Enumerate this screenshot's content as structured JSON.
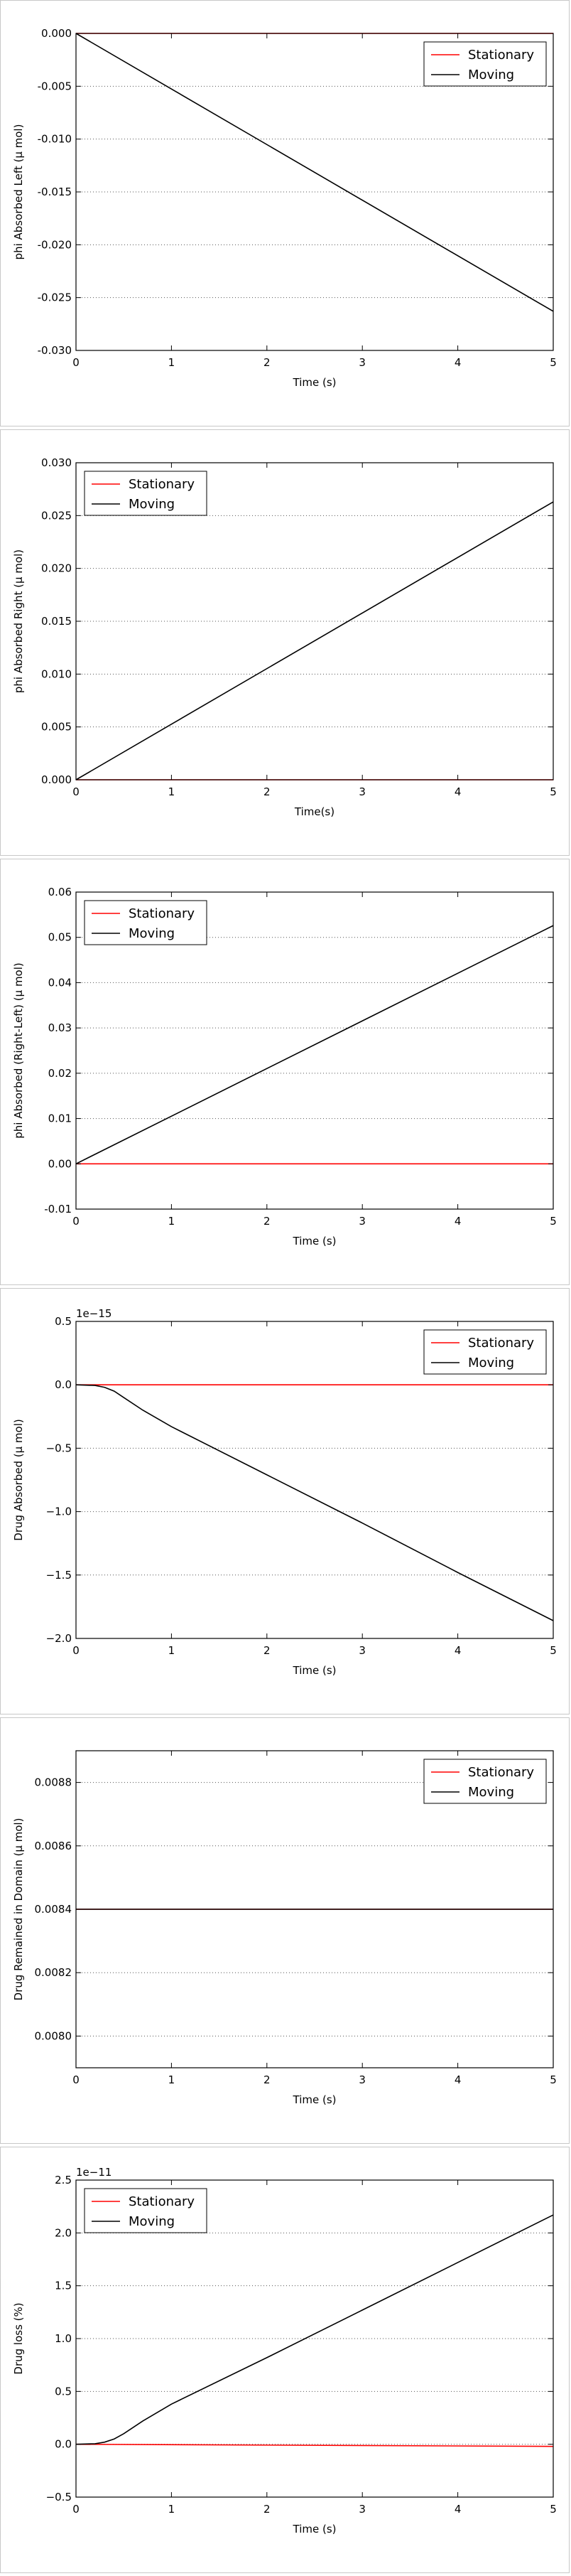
{
  "chart_data": [
    {
      "type": "line",
      "xlabel": "Time (s)",
      "ylabel": "phi Absorbed Left (μ mol)",
      "xlim": [
        0,
        5
      ],
      "ylim": [
        -0.03,
        0.0
      ],
      "xticks": [
        "0",
        "1",
        "2",
        "3",
        "4",
        "5"
      ],
      "yticks": [
        "-0.030",
        "-0.025",
        "-0.020",
        "-0.015",
        "-0.010",
        "-0.005",
        "0.000"
      ],
      "grid": "y-dotted",
      "legend": "top-right",
      "series": [
        {
          "name": "Stationary",
          "color": "#ff0000",
          "x": [
            0,
            5
          ],
          "y": [
            0,
            0
          ]
        },
        {
          "name": "Moving",
          "color": "#000000",
          "x": [
            0,
            5
          ],
          "y": [
            0,
            -0.0263
          ]
        }
      ]
    },
    {
      "type": "line",
      "xlabel": "Time(s)",
      "ylabel": "phi Absorbed Right (μ mol)",
      "xlim": [
        0,
        5
      ],
      "ylim": [
        0.0,
        0.03
      ],
      "xticks": [
        "0",
        "1",
        "2",
        "3",
        "4",
        "5"
      ],
      "yticks": [
        "0.000",
        "0.005",
        "0.010",
        "0.015",
        "0.020",
        "0.025",
        "0.030"
      ],
      "grid": "y-dotted",
      "legend": "top-left",
      "series": [
        {
          "name": "Stationary",
          "color": "#ff0000",
          "x": [
            0,
            5
          ],
          "y": [
            0,
            0
          ]
        },
        {
          "name": "Moving",
          "color": "#000000",
          "x": [
            0,
            5
          ],
          "y": [
            0,
            0.0263
          ]
        }
      ]
    },
    {
      "type": "line",
      "xlabel": "Time (s)",
      "ylabel": "phi Absorbed (Right-Left) (μ mol)",
      "xlim": [
        0,
        5
      ],
      "ylim": [
        -0.01,
        0.06
      ],
      "xticks": [
        "0",
        "1",
        "2",
        "3",
        "4",
        "5"
      ],
      "yticks": [
        "-0.01",
        "0.00",
        "0.01",
        "0.02",
        "0.03",
        "0.04",
        "0.05",
        "0.06"
      ],
      "grid": "y-dotted",
      "legend": "top-left",
      "series": [
        {
          "name": "Stationary",
          "color": "#ff0000",
          "x": [
            0,
            5
          ],
          "y": [
            0,
            0
          ]
        },
        {
          "name": "Moving",
          "color": "#000000",
          "x": [
            0,
            5
          ],
          "y": [
            0,
            0.0526
          ]
        }
      ]
    },
    {
      "type": "line",
      "xlabel": "Time (s)",
      "ylabel": "Drug Absorbed (μ mol)",
      "offset_text": "1e−15",
      "xlim": [
        0,
        5
      ],
      "ylim": [
        -2.0,
        0.5
      ],
      "xticks": [
        "0",
        "1",
        "2",
        "3",
        "4",
        "5"
      ],
      "yticks": [
        "−2.0",
        "−1.5",
        "−1.0",
        "−0.5",
        "0.0",
        "0.5"
      ],
      "grid": "y-dotted",
      "legend": "top-right",
      "series": [
        {
          "name": "Stationary",
          "color": "#ff0000",
          "x": [
            0,
            5
          ],
          "y": [
            0,
            0
          ]
        },
        {
          "name": "Moving",
          "color": "#000000",
          "x": [
            0,
            0.2,
            0.3,
            0.4,
            0.5,
            0.7,
            1.0,
            2.0,
            3.0,
            4.0,
            5.0
          ],
          "y": [
            0,
            -0.005,
            -0.02,
            -0.05,
            -0.1,
            -0.2,
            -0.33,
            -0.71,
            -1.09,
            -1.48,
            -1.86
          ]
        }
      ]
    },
    {
      "type": "line",
      "xlabel": "Time (s)",
      "ylabel": "Drug Remained in Domain (μ mol)",
      "xlim": [
        0,
        5
      ],
      "ylim": [
        0.0079,
        0.0089
      ],
      "xticks": [
        "0",
        "1",
        "2",
        "3",
        "4",
        "5"
      ],
      "yticks": [
        "0.0080",
        "0.0082",
        "0.0084",
        "0.0086",
        "0.0088"
      ],
      "ytick_values": [
        0.008,
        0.0082,
        0.0084,
        0.0086,
        0.0088
      ],
      "grid": "y-dotted",
      "legend": "top-right",
      "series": [
        {
          "name": "Stationary",
          "color": "#ff0000",
          "x": [
            0,
            5
          ],
          "y": [
            0.0084,
            0.0084
          ]
        },
        {
          "name": "Moving",
          "color": "#000000",
          "x": [
            0,
            5
          ],
          "y": [
            0.0084,
            0.0084
          ]
        }
      ]
    },
    {
      "type": "line",
      "xlabel": "Time (s)",
      "ylabel": "Drug loss (%)",
      "offset_text": "1e−11",
      "xlim": [
        0,
        5
      ],
      "ylim": [
        -0.5,
        2.5
      ],
      "xticks": [
        "0",
        "1",
        "2",
        "3",
        "4",
        "5"
      ],
      "yticks": [
        "−0.5",
        "0.0",
        "0.5",
        "1.0",
        "1.5",
        "2.0",
        "2.5"
      ],
      "grid": "y-dotted",
      "legend": "top-left",
      "series": [
        {
          "name": "Stationary",
          "color": "#ff0000",
          "x": [
            0,
            5
          ],
          "y": [
            0,
            -0.02
          ]
        },
        {
          "name": "Moving",
          "color": "#000000",
          "x": [
            0,
            0.2,
            0.3,
            0.4,
            0.5,
            0.7,
            1.0,
            2.0,
            3.0,
            4.0,
            5.0
          ],
          "y": [
            0,
            0.005,
            0.02,
            0.05,
            0.1,
            0.22,
            0.38,
            0.82,
            1.27,
            1.72,
            2.17
          ]
        }
      ]
    }
  ]
}
